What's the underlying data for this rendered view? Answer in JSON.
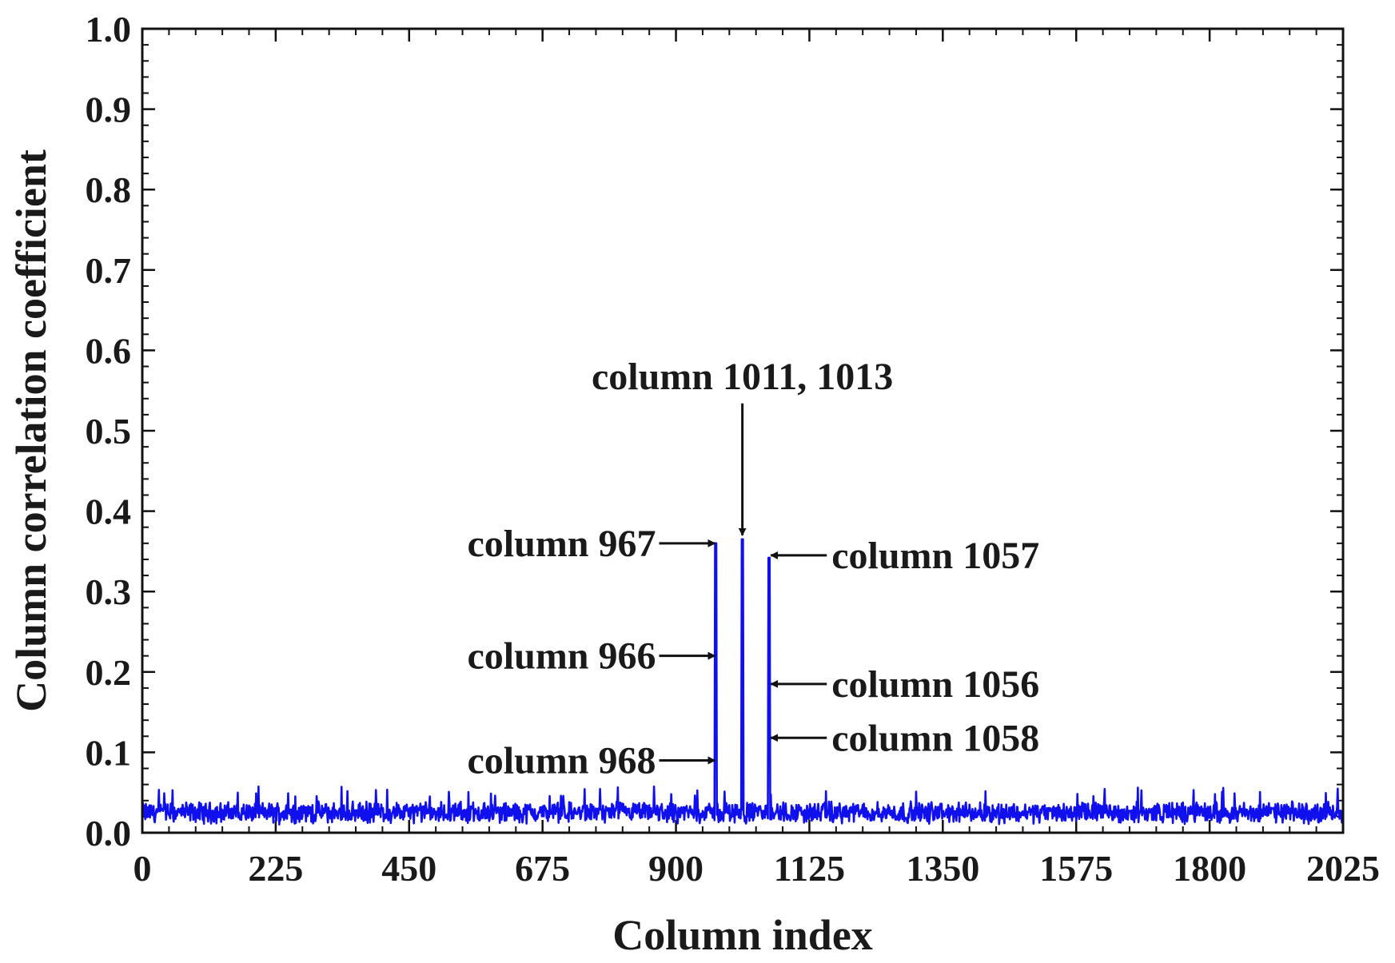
{
  "chart_data": {
    "type": "line",
    "title": "",
    "xlabel": "Column index",
    "ylabel": "Column correlation coefficient",
    "xlim": [
      0,
      2025
    ],
    "ylim": [
      0.0,
      1.0
    ],
    "x_ticks": [
      "0",
      "225",
      "450",
      "675",
      "900",
      "1125",
      "1350",
      "1575",
      "1800",
      "2025"
    ],
    "y_ticks": [
      "0.0",
      "0.1",
      "0.2",
      "0.3",
      "0.4",
      "0.5",
      "0.6",
      "0.7",
      "0.8",
      "0.9",
      "1.0"
    ],
    "grid": false,
    "series_color": "#1010ee",
    "baseline": {
      "x_range": [
        0,
        2025
      ],
      "typical_range": [
        0.005,
        0.045
      ],
      "occasional_max": 0.058
    },
    "peaks": [
      {
        "x": 966,
        "y": 0.36
      },
      {
        "x": 967,
        "y": 0.36
      },
      {
        "x": 968,
        "y": 0.36
      },
      {
        "x": 1011,
        "y": 0.365
      },
      {
        "x": 1013,
        "y": 0.365
      },
      {
        "x": 1056,
        "y": 0.342
      },
      {
        "x": 1057,
        "y": 0.342
      },
      {
        "x": 1058,
        "y": 0.342
      }
    ],
    "annotations": [
      {
        "text": "column 1011, 1013",
        "arrow_to": {
          "x": 1012,
          "y": 0.37
        },
        "direction": "down"
      },
      {
        "text": "column 967",
        "arrow_to": {
          "x": 966,
          "y": 0.36
        },
        "direction": "right"
      },
      {
        "text": "column 966",
        "arrow_to": {
          "x": 966,
          "y": 0.22
        },
        "direction": "right"
      },
      {
        "text": "column 968",
        "arrow_to": {
          "x": 966,
          "y": 0.09
        },
        "direction": "right"
      },
      {
        "text": "column 1057",
        "arrow_to": {
          "x": 1060,
          "y": 0.345
        },
        "direction": "left"
      },
      {
        "text": "column 1056",
        "arrow_to": {
          "x": 1060,
          "y": 0.185
        },
        "direction": "left"
      },
      {
        "text": "column 1058",
        "arrow_to": {
          "x": 1060,
          "y": 0.118
        },
        "direction": "left"
      }
    ]
  }
}
